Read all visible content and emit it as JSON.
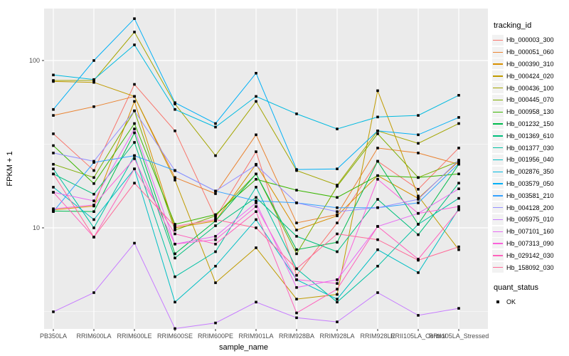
{
  "chart_data": {
    "type": "line",
    "title": "",
    "xlabel": "sample_name",
    "ylabel": "FPKM + 1",
    "y_scale": "log10",
    "y_tick_labels": [
      "100",
      "10"
    ],
    "y_tick_values": [
      100,
      10
    ],
    "y_minor_values": [
      31.62,
      3.162
    ],
    "ylim": [
      2.4,
      210
    ],
    "grid": "on",
    "legend_position": "right",
    "marker": "black-square",
    "categories": [
      "PB350LA",
      "RRIM600LA",
      "RRIM600LE",
      "RRIM600SE",
      "RRIM600PE",
      "RRIM901LA",
      "RRIM928BA",
      "RRIM928LA",
      "RRIM928LE",
      "RRII105LA_Control",
      "RRII105LA_Stressed"
    ],
    "series": [
      {
        "name": "Hb_000003_300",
        "color": "#F8766D",
        "values": [
          36.5,
          22,
          72,
          38,
          11.5,
          28.5,
          5.2,
          10.7,
          25,
          17,
          30
        ]
      },
      {
        "name": "Hb_000051_060",
        "color": "#EA8331",
        "values": [
          47,
          53,
          61,
          20,
          16,
          36,
          10.7,
          12,
          30,
          28,
          24
        ]
      },
      {
        "name": "Hb_000390_310",
        "color": "#D89000",
        "values": [
          12.8,
          13.5,
          57,
          10,
          11,
          24,
          9.7,
          11.8,
          20.5,
          15,
          25
        ]
      },
      {
        "name": "Hb_000424_020",
        "color": "#C09B00",
        "values": [
          75,
          74,
          61,
          19.3,
          4.7,
          7.6,
          3.75,
          4.0,
          66,
          15.5,
          7.4
        ]
      },
      {
        "name": "Hb_000436_100",
        "color": "#A3A500",
        "values": [
          76,
          76,
          148,
          55,
          27,
          57,
          22,
          18,
          38,
          32,
          42
        ]
      },
      {
        "name": "Hb_000445_070",
        "color": "#7CAE00",
        "values": [
          24,
          20,
          50,
          9.7,
          11.8,
          21,
          7.0,
          17.7,
          36.5,
          20,
          25
        ]
      },
      {
        "name": "Hb_000958_130",
        "color": "#39B600",
        "values": [
          31,
          18.4,
          42,
          10.5,
          12,
          19.5,
          16.8,
          15.2,
          20.5,
          20,
          21
        ]
      },
      {
        "name": "Hb_001232_150",
        "color": "#00BB4E",
        "values": [
          12.6,
          12.5,
          37,
          7.0,
          11,
          21,
          7.4,
          8.2,
          25,
          10.5,
          24
        ]
      },
      {
        "name": "Hb_001369_610",
        "color": "#00BF7D",
        "values": [
          21,
          15.9,
          32.4,
          6.6,
          10.3,
          15.2,
          8.9,
          7.2,
          14.8,
          9.1,
          18.5
        ]
      },
      {
        "name": "Hb_001377_030",
        "color": "#00C1A3",
        "values": [
          22.5,
          10,
          27,
          5.1,
          7.2,
          17.5,
          5.7,
          3.6,
          5.9,
          10.5,
          15
        ]
      },
      {
        "name": "Hb_001956_040",
        "color": "#00BFC4",
        "values": [
          17.5,
          11.2,
          22.5,
          3.6,
          5.9,
          11.2,
          4.9,
          3.75,
          7.4,
          5.4,
          13
        ]
      },
      {
        "name": "Hb_002876_350",
        "color": "#00BAE0",
        "values": [
          82,
          77,
          124,
          51,
          40,
          61,
          48,
          39,
          46,
          47,
          62
        ]
      },
      {
        "name": "Hb_003579_050",
        "color": "#00B0F6",
        "values": [
          51,
          100,
          178,
          56,
          42,
          84,
          22.3,
          22.5,
          38,
          36,
          45.7
        ]
      },
      {
        "name": "Hb_003581_210",
        "color": "#35A2FF",
        "values": [
          12.5,
          24.6,
          27,
          22,
          16.6,
          14.5,
          14.1,
          13.2,
          13.2,
          14.1,
          24.2
        ]
      },
      {
        "name": "Hb_004128_200",
        "color": "#9590FF",
        "values": [
          28,
          25,
          50,
          22,
          16.6,
          23.7,
          14.1,
          12.5,
          13.2,
          14.8,
          25.4
        ]
      },
      {
        "name": "Hb_005975_010",
        "color": "#C77CFF",
        "values": [
          3.15,
          4.1,
          8.1,
          2.5,
          2.7,
          3.6,
          2.9,
          2.74,
          4.1,
          3.0,
          3.3
        ]
      },
      {
        "name": "Hb_007101_160",
        "color": "#E76BF3",
        "values": [
          16.3,
          14.5,
          39,
          8.0,
          8.9,
          14.1,
          4.4,
          4.9,
          10.2,
          12.2,
          17.1
        ]
      },
      {
        "name": "Hb_007313_090",
        "color": "#FA62DB",
        "values": [
          13.0,
          13.7,
          25.9,
          8.0,
          8.5,
          13.4,
          4.9,
          4.65,
          19.5,
          12.2,
          13.4
        ]
      },
      {
        "name": "Hb_029142_030",
        "color": "#FF62BC",
        "values": [
          16.3,
          8.8,
          22.5,
          9.2,
          8.0,
          12.5,
          3.1,
          4.3,
          10.2,
          6.5,
          12.8
        ]
      },
      {
        "name": "Hb_158092_030",
        "color": "#FF6A98",
        "values": [
          21,
          8.8,
          18.5,
          10.2,
          11.2,
          10,
          5.7,
          9.2,
          8.5,
          6.4,
          7.7
        ]
      }
    ],
    "legend": {
      "color_title": "tracking_id",
      "shape_title": "quant_status",
      "shape_items": [
        {
          "label": "OK"
        }
      ]
    }
  },
  "style_colors": {
    "panel_bg": "#EBEBEB",
    "grid_major": "#FFFFFF",
    "grid_minor": "#F5F5F5",
    "tick_text": "#4D4D4D",
    "marker": "#000000",
    "legend_key_bg": "#F2F2F2"
  }
}
